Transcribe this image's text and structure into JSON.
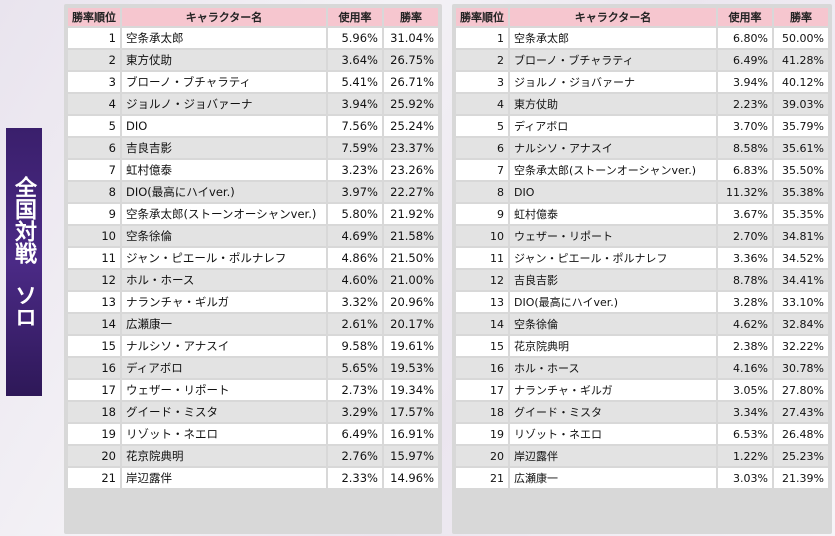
{
  "side_label": {
    "line1": "全国対戦",
    "line2": "ソロ"
  },
  "headers": {
    "rank": "勝率順位",
    "name": "キャラクター名",
    "usage": "使用率",
    "win": "勝率"
  },
  "left_table": [
    {
      "rank": "1",
      "name": "空条承太郎",
      "usage": "5.96%",
      "win": "31.04%"
    },
    {
      "rank": "2",
      "name": "東方仗助",
      "usage": "3.64%",
      "win": "26.75%"
    },
    {
      "rank": "3",
      "name": "ブローノ・ブチャラティ",
      "usage": "5.41%",
      "win": "26.71%"
    },
    {
      "rank": "4",
      "name": "ジョルノ・ジョバァーナ",
      "usage": "3.94%",
      "win": "25.92%"
    },
    {
      "rank": "5",
      "name": "DIO",
      "usage": "7.56%",
      "win": "25.24%"
    },
    {
      "rank": "6",
      "name": "吉良吉影",
      "usage": "7.59%",
      "win": "23.37%"
    },
    {
      "rank": "7",
      "name": "虹村億泰",
      "usage": "3.23%",
      "win": "23.26%"
    },
    {
      "rank": "8",
      "name": "DIO(最高にハイver.)",
      "usage": "3.97%",
      "win": "22.27%"
    },
    {
      "rank": "9",
      "name": "空条承太郎(ストーンオーシャンver.)",
      "usage": "5.80%",
      "win": "21.92%"
    },
    {
      "rank": "10",
      "name": "空条徐倫",
      "usage": "4.69%",
      "win": "21.58%"
    },
    {
      "rank": "11",
      "name": "ジャン・ピエール・ポルナレフ",
      "usage": "4.86%",
      "win": "21.50%"
    },
    {
      "rank": "12",
      "name": "ホル・ホース",
      "usage": "4.60%",
      "win": "21.00%"
    },
    {
      "rank": "13",
      "name": "ナランチャ・ギルガ",
      "usage": "3.32%",
      "win": "20.96%"
    },
    {
      "rank": "14",
      "name": "広瀬康一",
      "usage": "2.61%",
      "win": "20.17%"
    },
    {
      "rank": "15",
      "name": "ナルシソ・アナスイ",
      "usage": "9.58%",
      "win": "19.61%"
    },
    {
      "rank": "16",
      "name": "ディアボロ",
      "usage": "5.65%",
      "win": "19.53%"
    },
    {
      "rank": "17",
      "name": "ウェザー・リポート",
      "usage": "2.73%",
      "win": "19.34%"
    },
    {
      "rank": "18",
      "name": "グイード・ミスタ",
      "usage": "3.29%",
      "win": "17.57%"
    },
    {
      "rank": "19",
      "name": "リゾット・ネエロ",
      "usage": "6.49%",
      "win": "16.91%"
    },
    {
      "rank": "20",
      "name": "花京院典明",
      "usage": "2.76%",
      "win": "15.97%"
    },
    {
      "rank": "21",
      "name": "岸辺露伴",
      "usage": "2.33%",
      "win": "14.96%"
    }
  ],
  "right_table": [
    {
      "rank": "1",
      "name": "空条承太郎",
      "usage": "6.80%",
      "win": "50.00%"
    },
    {
      "rank": "2",
      "name": "ブローノ・ブチャラティ",
      "usage": "6.49%",
      "win": "41.28%"
    },
    {
      "rank": "3",
      "name": "ジョルノ・ジョバァーナ",
      "usage": "3.94%",
      "win": "40.12%"
    },
    {
      "rank": "4",
      "name": "東方仗助",
      "usage": "2.23%",
      "win": "39.03%"
    },
    {
      "rank": "5",
      "name": "ディアボロ",
      "usage": "3.70%",
      "win": "35.79%"
    },
    {
      "rank": "6",
      "name": "ナルシソ・アナスイ",
      "usage": "8.58%",
      "win": "35.61%"
    },
    {
      "rank": "7",
      "name": "空条承太郎(ストーンオーシャンver.)",
      "usage": "6.83%",
      "win": "35.50%"
    },
    {
      "rank": "8",
      "name": "DIO",
      "usage": "11.32%",
      "win": "35.38%"
    },
    {
      "rank": "9",
      "name": "虹村億泰",
      "usage": "3.67%",
      "win": "35.35%"
    },
    {
      "rank": "10",
      "name": "ウェザー・リポート",
      "usage": "2.70%",
      "win": "34.81%"
    },
    {
      "rank": "11",
      "name": "ジャン・ピエール・ポルナレフ",
      "usage": "3.36%",
      "win": "34.52%"
    },
    {
      "rank": "12",
      "name": "吉良吉影",
      "usage": "8.78%",
      "win": "34.41%"
    },
    {
      "rank": "13",
      "name": "DIO(最高にハイver.)",
      "usage": "3.28%",
      "win": "33.10%"
    },
    {
      "rank": "14",
      "name": "空条徐倫",
      "usage": "4.62%",
      "win": "32.84%"
    },
    {
      "rank": "15",
      "name": "花京院典明",
      "usage": "2.38%",
      "win": "32.22%"
    },
    {
      "rank": "16",
      "name": "ホル・ホース",
      "usage": "4.16%",
      "win": "30.78%"
    },
    {
      "rank": "17",
      "name": "ナランチャ・ギルガ",
      "usage": "3.05%",
      "win": "27.80%"
    },
    {
      "rank": "18",
      "name": "グイード・ミスタ",
      "usage": "3.34%",
      "win": "27.43%"
    },
    {
      "rank": "19",
      "name": "リゾット・ネエロ",
      "usage": "6.53%",
      "win": "26.48%"
    },
    {
      "rank": "20",
      "name": "岸辺露伴",
      "usage": "1.22%",
      "win": "25.23%"
    },
    {
      "rank": "21",
      "name": "広瀬康一",
      "usage": "3.03%",
      "win": "21.39%"
    }
  ],
  "colors": {
    "header_bg": "#f6c6cf",
    "side_label_bg": "#3a1f6c",
    "row_alt": "#e3e3e3"
  }
}
